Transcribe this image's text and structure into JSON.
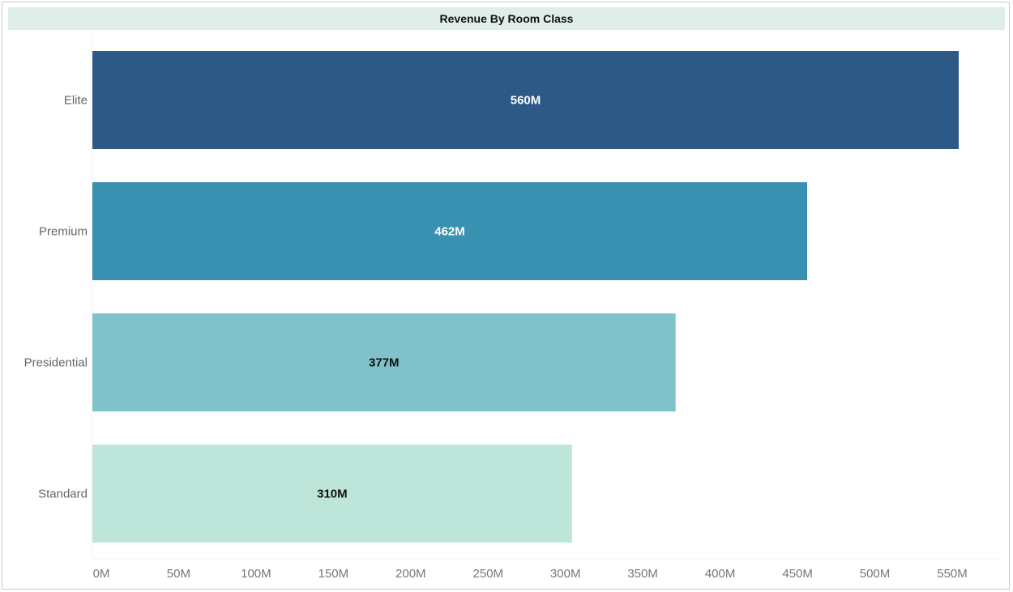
{
  "chart_data": {
    "type": "bar",
    "orientation": "horizontal",
    "title": "Revenue By Room Class",
    "categories": [
      "Elite",
      "Premium",
      "Presidential",
      "Standard"
    ],
    "values": [
      560,
      462,
      377,
      310
    ],
    "value_labels": [
      "560M",
      "462M",
      "377M",
      "310M"
    ],
    "bar_colors": [
      "#2d5986",
      "#3a92b2",
      "#7fc2c9",
      "#bde5d9"
    ],
    "label_colors": [
      "#ffffff",
      "#ffffff",
      "#111111",
      "#111111"
    ],
    "xlim": [
      0,
      580
    ],
    "x_ticks": [
      0,
      50,
      100,
      150,
      200,
      250,
      300,
      350,
      400,
      450,
      500,
      550
    ],
    "x_tick_labels": [
      "0M",
      "50M",
      "100M",
      "150M",
      "200M",
      "250M",
      "300M",
      "350M",
      "400M",
      "450M",
      "500M",
      "550M"
    ],
    "xlabel": "",
    "ylabel": "",
    "grid": false,
    "legend": "none"
  }
}
